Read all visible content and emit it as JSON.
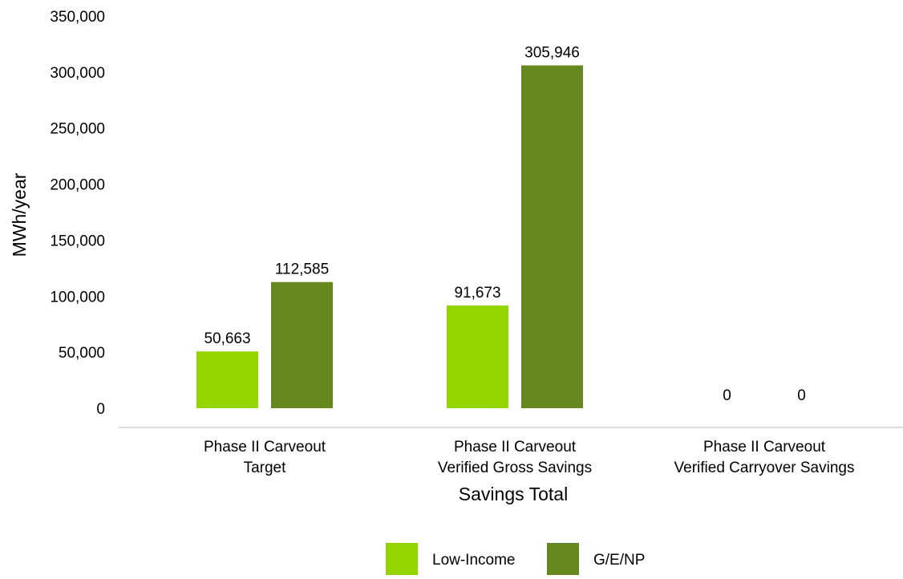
{
  "chart_data": {
    "type": "bar",
    "xlabel": "Savings Total",
    "ylabel": "MWh/year",
    "ylim": [
      0,
      350000
    ],
    "yticks": [
      "0",
      "50,000",
      "100,000",
      "150,000",
      "200,000",
      "250,000",
      "300,000",
      "350,000"
    ],
    "grid": false,
    "legend_position": "bottom",
    "categories": [
      [
        "Phase II Carveout",
        "Target"
      ],
      [
        "Phase II Carveout",
        "Verified Gross Savings"
      ],
      [
        "Phase II Carveout",
        "Verified Carryover Savings"
      ]
    ],
    "series": [
      {
        "name": "Low-Income",
        "color": "#94d500",
        "values": [
          50663,
          91673,
          0
        ],
        "labels": [
          "50,663",
          "91,673",
          "0"
        ]
      },
      {
        "name": "G/E/NP",
        "color": "#66891f",
        "values": [
          112585,
          305946,
          0
        ],
        "labels": [
          "112,585",
          "305,946",
          "0"
        ]
      }
    ]
  }
}
